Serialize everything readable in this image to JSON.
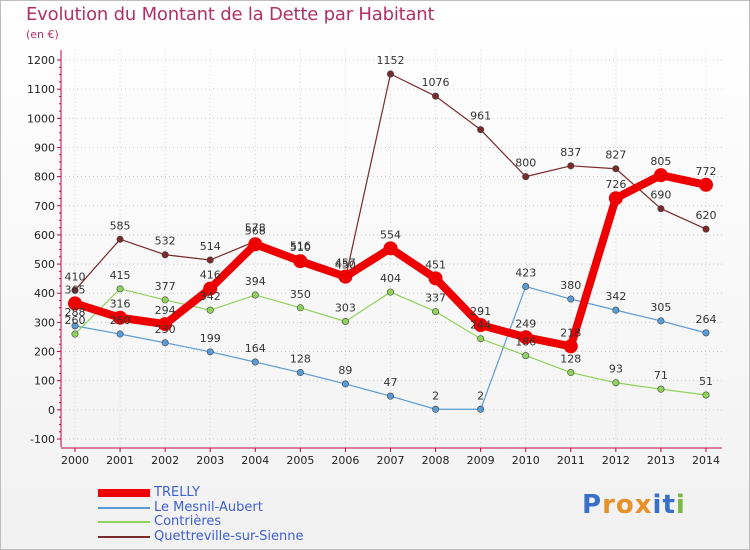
{
  "title": "Evolution du Montant de la Dette par Habitant",
  "subtitle": "(en €)",
  "logo": {
    "text": "Proxiti",
    "letters": [
      "P",
      "r",
      "o",
      "x",
      "i",
      "t",
      "i"
    ],
    "colors": [
      "#3a6fc7",
      "#e8912a",
      "#e8912a",
      "#e8912a",
      "#3a6fc7",
      "#3a6fc7",
      "#7ab648"
    ]
  },
  "chart_data": {
    "type": "line",
    "title": "Evolution du Montant de la Dette par Habitant",
    "subtitle": "(en €)",
    "xlabel": "",
    "ylabel": "",
    "x": [
      "2000",
      "2001",
      "2002",
      "2003",
      "2004",
      "2005",
      "2006",
      "2007",
      "2008",
      "2009",
      "2010",
      "2011",
      "2012",
      "2013",
      "2014"
    ],
    "ylim": [
      -100,
      1200
    ],
    "yticks": [
      -100,
      0,
      100,
      200,
      300,
      400,
      500,
      600,
      700,
      800,
      900,
      1000,
      1100,
      1200
    ],
    "grid": true,
    "legend_position": "bottom-left",
    "series": [
      {
        "name": "TRELLY",
        "color": "#ee0000",
        "emphasis": true,
        "values": [
          365,
          316,
          294,
          416,
          568,
          510,
          457,
          554,
          451,
          291,
          249,
          218,
          726,
          805,
          772
        ],
        "labels": [
          "365",
          "316",
          "294",
          "416",
          "568",
          "510",
          "457",
          "554",
          "451",
          "291",
          "249",
          "218",
          "726",
          "805",
          "772"
        ]
      },
      {
        "name": "Le Mesnil-Aubert",
        "color": "#5b9bd5",
        "emphasis": false,
        "values": [
          288,
          260,
          230,
          199,
          164,
          128,
          89,
          47,
          2,
          2,
          423,
          380,
          342,
          305,
          264
        ],
        "labels": [
          "288",
          "260",
          "230",
          "199",
          "164",
          "128",
          "89",
          "47",
          "2",
          "2",
          "423",
          "380",
          "342",
          "305",
          "264"
        ]
      },
      {
        "name": "Contrières",
        "color": "#8fd35a",
        "emphasis": false,
        "values": [
          260,
          415,
          377,
          342,
          394,
          350,
          303,
          404,
          337,
          244,
          186,
          128,
          93,
          71,
          51
        ],
        "labels": [
          "260",
          "415",
          "377",
          "342",
          "394",
          "350",
          "303",
          "404",
          "337",
          "244",
          "186",
          "128",
          "93",
          "71",
          "51"
        ]
      },
      {
        "name": "Quettreville-sur-Sienne",
        "color": "#7a2a2a",
        "emphasis": false,
        "values": [
          410,
          585,
          532,
          514,
          578,
          516,
          450,
          1152,
          1076,
          961,
          800,
          837,
          827,
          690,
          620
        ],
        "labels": [
          "410",
          "585",
          "532",
          "514",
          "578",
          "516",
          "450",
          "1152",
          "1076",
          "961",
          "800",
          "837",
          "827",
          "690",
          "620"
        ]
      }
    ]
  }
}
